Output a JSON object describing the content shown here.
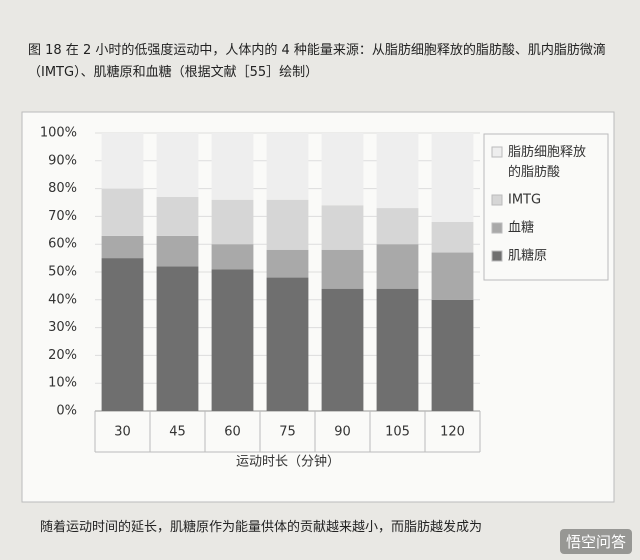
{
  "chart_data": {
    "type": "stacked_bar",
    "title": "图 18  在 2 小时的低强度运动中，人体内的 4 种能量来源：从脂肪细胞释放的脂肪酸、肌内脂肪微滴（IMTG）、肌糖原和血糖（根据文献［55］绘制）",
    "x_label": "运动时长（分钟）",
    "categories": [
      "30",
      "45",
      "60",
      "75",
      "90",
      "105",
      "120"
    ],
    "series": [
      {
        "name": "肌糖原",
        "color": "#6f6f6f",
        "values": [
          55,
          52,
          51,
          48,
          44,
          44,
          40
        ]
      },
      {
        "name": "血糖",
        "color": "#a9a9a9",
        "values": [
          8,
          11,
          9,
          10,
          14,
          16,
          17
        ]
      },
      {
        "name": "IMTG",
        "color": "#d6d6d6",
        "values": [
          17,
          14,
          16,
          18,
          16,
          13,
          11
        ]
      },
      {
        "name": "脂肪细胞释放的脂肪酸",
        "color": "#eeeeee",
        "values": [
          20,
          23,
          24,
          24,
          26,
          27,
          32
        ]
      }
    ],
    "ylim": [
      0,
      100
    ],
    "yticks": [
      {
        "value": 0,
        "label": "0%"
      },
      {
        "value": 10,
        "label": "10%"
      },
      {
        "value": 20,
        "label": "20%"
      },
      {
        "value": 30,
        "label": "30%"
      },
      {
        "value": 40,
        "label": "40%"
      },
      {
        "value": 50,
        "label": "50%"
      },
      {
        "value": 60,
        "label": "60%"
      },
      {
        "value": 70,
        "label": "70%"
      },
      {
        "value": 80,
        "label": "80%"
      },
      {
        "value": 90,
        "label": "90%"
      },
      {
        "value": 100,
        "label": "100%"
      }
    ],
    "grid": true,
    "legend": "right"
  },
  "footer": "随着运动时间的延长，肌糖原作为能量供体的贡献越来越小，而脂肪越发成为",
  "watermark": "悟空问答"
}
